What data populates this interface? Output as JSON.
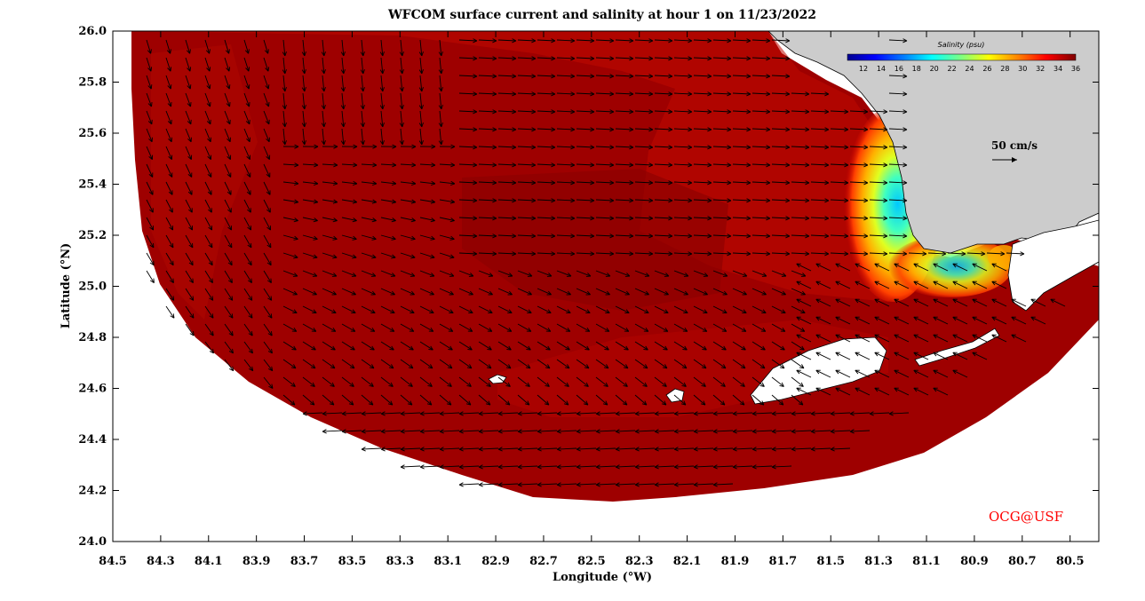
{
  "title": "WFCOM surface current and salinity at hour 1 on 11/23/2022",
  "x_axis": {
    "label": "Longitude (°W)",
    "ticks": [
      "84.5",
      "84.3",
      "84.1",
      "83.9",
      "83.7",
      "83.5",
      "83.3",
      "83.1",
      "82.9",
      "82.7",
      "82.5",
      "82.3",
      "82.1",
      "81.9",
      "81.7",
      "81.5",
      "81.3",
      "81.1",
      "80.9",
      "80.7",
      "80.5"
    ]
  },
  "y_axis": {
    "label": "Latitude (°N)",
    "ticks": [
      "26.0",
      "25.8",
      "25.6",
      "25.4",
      "25.2",
      "25.0",
      "24.8",
      "24.6",
      "24.4",
      "24.2",
      "24.0"
    ]
  },
  "colorbar": {
    "title": "Salinity (psu)",
    "ticks": [
      "12",
      "14",
      "16",
      "18",
      "20",
      "22",
      "24",
      "26",
      "28",
      "30",
      "32",
      "34",
      "36"
    ],
    "colors": [
      "#00008f",
      "#0000ff",
      "#0060ff",
      "#00bfff",
      "#20ffdf",
      "#80ff80",
      "#dfff20",
      "#ffbf00",
      "#ff6000",
      "#ff0000",
      "#bf0000",
      "#8f0000"
    ]
  },
  "scale_vector": {
    "label": "50 cm/s"
  },
  "credit": {
    "text": "OCG@USF",
    "color": "#ff0000"
  },
  "colors": {
    "ocean_base": "#9e0000",
    "ocean_light": "#bf0a00",
    "ocean_dark": "#8a0000",
    "land": "#cccccc",
    "background": "#ffffff",
    "arrow": "#000000"
  }
}
